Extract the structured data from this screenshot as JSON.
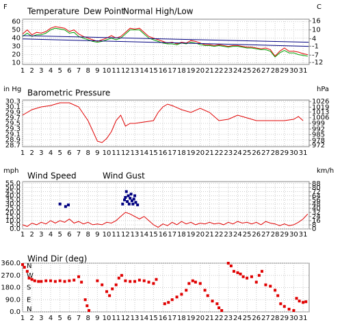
{
  "chart_data": [
    {
      "type": "line",
      "y_label": "F",
      "y2_label": "C",
      "x": [
        1,
        1.5,
        2,
        2.5,
        3,
        3.5,
        4,
        4.5,
        5,
        5.5,
        6,
        6.5,
        7,
        7.5,
        8,
        8.5,
        9,
        9.5,
        10,
        10.5,
        11,
        11.5,
        12,
        12.5,
        13,
        13.5,
        14,
        14.5,
        15,
        15.5,
        16,
        16.5,
        17,
        17.5,
        18,
        18.5,
        19,
        19.5,
        20,
        20.5,
        21,
        21.5,
        22,
        22.5,
        23,
        23.5,
        24,
        24.5,
        25,
        25.5,
        26,
        26.5,
        27,
        27.5,
        28,
        28.5,
        29,
        29.5,
        30,
        30.5,
        31,
        31.5
      ],
      "series": [
        {
          "name": "Temperature",
          "color": "#e00000",
          "values": [
            45,
            50,
            44,
            47,
            46,
            48,
            52,
            54,
            53,
            52,
            48,
            50,
            45,
            42,
            40,
            38,
            36,
            38,
            40,
            43,
            40,
            42,
            47,
            52,
            51,
            52,
            47,
            42,
            40,
            38,
            36,
            34,
            35,
            33,
            35,
            34,
            37,
            36,
            34,
            32,
            32,
            31,
            32,
            31,
            30,
            31,
            31,
            30,
            29,
            29,
            28,
            27,
            28,
            26,
            18,
            24,
            28,
            24,
            24,
            23,
            21,
            20
          ]
        },
        {
          "name": "Dew Point",
          "color": "#00a000",
          "values": [
            42,
            46,
            42,
            44,
            44,
            46,
            50,
            52,
            51,
            50,
            46,
            47,
            42,
            40,
            38,
            36,
            35,
            36,
            38,
            40,
            38,
            40,
            45,
            50,
            50,
            50,
            45,
            40,
            38,
            36,
            34,
            33,
            33,
            32,
            34,
            33,
            35,
            34,
            32,
            31,
            31,
            30,
            31,
            30,
            29,
            30,
            30,
            29,
            28,
            28,
            27,
            26,
            26,
            24,
            17,
            22,
            25,
            22,
            22,
            20,
            19,
            18
          ]
        },
        {
          "name": "Normal High/Low",
          "color": "#000080",
          "x": [
            1,
            31.6
          ],
          "values": [
            43,
            35
          ],
          "low_values": [
            39,
            30
          ]
        }
      ],
      "xlim": [
        1,
        31.65
      ],
      "xticks": [
        1,
        2,
        3,
        4,
        5,
        6,
        7,
        8,
        9,
        10,
        11,
        12,
        13,
        14,
        15,
        16,
        17,
        18,
        19,
        20,
        21,
        22,
        23,
        24,
        25,
        26,
        27,
        28,
        29,
        30,
        31
      ],
      "ylim": [
        8,
        63
      ],
      "yticks": [
        60,
        50,
        40,
        30,
        20,
        10
      ],
      "y2lim": [
        -13.3,
        17.2
      ],
      "y2ticks": [
        16,
        10,
        4,
        -1,
        -7,
        -12
      ],
      "grid": true
    },
    {
      "type": "line",
      "title": "Barometric Pressure",
      "y_label": "in Hg",
      "y2_label": "hPa",
      "color": "#e00000",
      "x": [
        1,
        2,
        3,
        4,
        5,
        6,
        7,
        8,
        9,
        9.5,
        10,
        10.5,
        11,
        11.5,
        12,
        12.5,
        13,
        14,
        15,
        15.5,
        16,
        16.5,
        17,
        18,
        19,
        20,
        21,
        22,
        23,
        24,
        25,
        26,
        27,
        28,
        29,
        30,
        30.5,
        31
      ],
      "values": [
        29.8,
        30.0,
        30.1,
        30.15,
        30.25,
        30.25,
        30.1,
        29.6,
        28.85,
        28.8,
        28.95,
        29.2,
        29.6,
        29.8,
        29.4,
        29.5,
        29.5,
        29.55,
        29.6,
        29.9,
        30.1,
        30.2,
        30.15,
        30.0,
        29.9,
        30.05,
        29.9,
        29.6,
        29.65,
        29.8,
        29.7,
        29.6,
        29.6,
        29.6,
        29.6,
        29.65,
        29.75,
        29.6
      ],
      "xlim": [
        1,
        31.65
      ],
      "xticks": [
        1,
        2,
        3,
        4,
        5,
        6,
        7,
        8,
        9,
        10,
        11,
        12,
        13,
        14,
        15,
        16,
        17,
        18,
        19,
        20,
        21,
        22,
        23,
        24,
        25,
        26,
        27,
        28,
        29,
        30,
        31
      ],
      "ylim": [
        28.65,
        30.35
      ],
      "yticks": [
        30.3,
        30.1,
        29.9,
        29.7,
        29.5,
        29.3,
        29.1,
        28.9,
        28.7
      ],
      "y2lim": [
        970.2,
        1027.8
      ],
      "y2ticks": [
        1026,
        1019,
        1013,
        1006,
        999,
        992,
        985,
        978,
        972
      ],
      "grid": true
    },
    {
      "type": "line",
      "y_label": "mph",
      "y2_label": "km/h",
      "x": [
        1,
        1.5,
        2,
        2.5,
        3,
        3.5,
        4,
        4.5,
        5,
        5.5,
        6,
        6.5,
        7,
        7.5,
        8,
        8.5,
        9,
        9.5,
        10,
        10.5,
        11,
        11.5,
        12,
        12.5,
        13,
        13.5,
        14,
        14.5,
        15,
        15.5,
        16,
        16.5,
        17,
        17.5,
        18,
        18.5,
        19,
        19.5,
        20,
        20.5,
        21,
        21.5,
        22,
        22.5,
        23,
        23.5,
        24,
        24.5,
        25,
        25.5,
        26,
        26.5,
        27,
        27.5,
        28,
        28.5,
        29,
        29.5,
        30,
        30.5,
        31,
        31.5
      ],
      "series": [
        {
          "name": "Wind Speed",
          "color": "#e00000",
          "mark": "line",
          "values": [
            5,
            3,
            7,
            5,
            8,
            6,
            10,
            7,
            10,
            8,
            12,
            7,
            9,
            6,
            8,
            5,
            6,
            5,
            8,
            7,
            10,
            15,
            20,
            18,
            15,
            12,
            15,
            10,
            5,
            2,
            6,
            4,
            8,
            5,
            9,
            6,
            8,
            5,
            7,
            6,
            8,
            6,
            7,
            5,
            8,
            6,
            9,
            7,
            8,
            6,
            8,
            5,
            9,
            7,
            6,
            4,
            6,
            4,
            5,
            8,
            12,
            18
          ]
        },
        {
          "name": "Wind Gust",
          "color": "#000080",
          "mark": "point",
          "x": [
            5,
            5.6,
            5.9,
            11.7,
            11.9,
            12,
            12.1,
            12.2,
            12.3,
            12.4,
            12.5,
            12.6,
            12.7,
            12.8,
            12.9,
            13,
            13.1,
            13.3
          ],
          "values": [
            30,
            27,
            29,
            30,
            35,
            38,
            45,
            33,
            40,
            30,
            37,
            42,
            34,
            30,
            36,
            40,
            32,
            29
          ]
        }
      ],
      "xlim": [
        1,
        31.65
      ],
      "xticks": [
        1,
        2,
        3,
        4,
        5,
        6,
        7,
        8,
        9,
        10,
        11,
        12,
        13,
        14,
        15,
        16,
        17,
        18,
        19,
        20,
        21,
        22,
        23,
        24,
        25,
        26,
        27,
        28,
        29,
        30,
        31
      ],
      "ylim": [
        0,
        57
      ],
      "yticks": [
        {
          "value": 55,
          "label": "55.0"
        },
        {
          "value": 50,
          "label": "50.0"
        },
        {
          "value": 45,
          "label": "45.0"
        },
        {
          "value": 40,
          "label": "40.0"
        },
        {
          "value": 35,
          "label": "35.0"
        },
        {
          "value": 30,
          "label": "30.0"
        },
        {
          "value": 25,
          "label": "25.0"
        },
        {
          "value": 20,
          "label": "20.0"
        },
        {
          "value": 15,
          "label": "15.0"
        },
        {
          "value": 10,
          "label": "10.0"
        },
        {
          "value": 5,
          "label": "5.0"
        },
        {
          "value": 0,
          "label": "0.0"
        }
      ],
      "y2lim": [
        0,
        91.7
      ],
      "y2ticks": [
        88,
        80,
        72,
        64,
        56,
        48,
        40,
        32,
        24,
        16,
        8,
        0
      ],
      "grid": true
    },
    {
      "type": "scatter",
      "title": "Wind Dir (deg)",
      "color": "#e00000",
      "x": [
        1,
        1.2,
        1.5,
        1.7,
        2,
        2.3,
        2.7,
        3,
        3.5,
        4,
        4.5,
        5,
        5.5,
        6,
        6.5,
        7,
        7.3,
        7.7,
        7.9,
        8.1,
        9,
        9.5,
        10,
        10.3,
        10.6,
        11,
        11.3,
        11.6,
        12,
        12.5,
        13,
        13.5,
        14,
        14.5,
        15,
        15.3,
        16.2,
        16.6,
        17,
        17.5,
        18,
        18.5,
        18.8,
        19.2,
        19.5,
        20,
        20.5,
        20.8,
        21.3,
        21.8,
        22,
        22.3,
        23,
        23.3,
        23.6,
        24,
        24.3,
        24.6,
        25,
        25.5,
        26,
        26.3,
        26.6,
        27,
        27.5,
        28,
        28.3,
        28.6,
        29,
        29.5,
        30,
        30.3,
        30.6,
        31,
        31.3
      ],
      "values": [
        350,
        330,
        300,
        250,
        240,
        230,
        225,
        225,
        230,
        230,
        225,
        230,
        225,
        230,
        235,
        260,
        220,
        90,
        45,
        10,
        230,
        200,
        150,
        120,
        170,
        200,
        250,
        270,
        230,
        225,
        225,
        235,
        230,
        220,
        210,
        240,
        60,
        70,
        90,
        110,
        130,
        160,
        210,
        230,
        220,
        210,
        160,
        120,
        80,
        60,
        30,
        10,
        360,
        340,
        300,
        290,
        280,
        260,
        250,
        260,
        220,
        270,
        300,
        200,
        190,
        160,
        120,
        60,
        40,
        20,
        10,
        100,
        80,
        70,
        75
      ],
      "xlim": [
        1,
        31.65
      ],
      "xticks": [
        1,
        2,
        3,
        4,
        5,
        6,
        7,
        8,
        9,
        10,
        11,
        12,
        13,
        14,
        15,
        16,
        17,
        18,
        19,
        20,
        21,
        22,
        23,
        24,
        25,
        26,
        27,
        28,
        29,
        30,
        31
      ],
      "ylim": [
        0,
        360
      ],
      "yticks": [
        {
          "value": 360,
          "label": "360.0"
        },
        {
          "value": 270,
          "label": "270.0"
        },
        {
          "value": 180,
          "label": "180.0"
        },
        {
          "value": 90,
          "label": "90.0"
        },
        {
          "value": 0,
          "label": "0.0"
        }
      ],
      "dir_ticks": [
        {
          "value": 360,
          "label": "N"
        },
        {
          "value": 270,
          "label": "W"
        },
        {
          "value": 180,
          "label": "S"
        },
        {
          "value": 90,
          "label": "E"
        },
        {
          "value": 0,
          "label": "N"
        }
      ],
      "grid": true
    }
  ]
}
